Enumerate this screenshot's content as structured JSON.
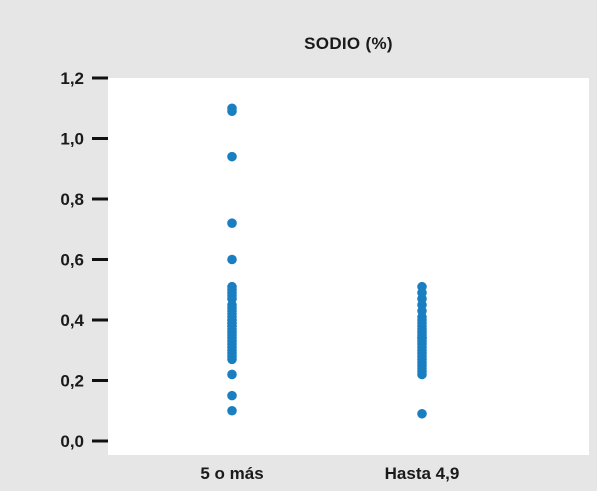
{
  "chart_data": {
    "type": "scatter",
    "title": "SODIO (%)",
    "xlabel": "",
    "ylabel": "",
    "ylim": [
      0,
      1.2
    ],
    "yticks": [
      {
        "value": 0.0,
        "label": "0,0"
      },
      {
        "value": 0.2,
        "label": "0,2"
      },
      {
        "value": 0.4,
        "label": "0,4"
      },
      {
        "value": 0.6,
        "label": "0,6"
      },
      {
        "value": 0.8,
        "label": "0,8"
      },
      {
        "value": 1.0,
        "label": "1,0"
      },
      {
        "value": 1.2,
        "label": "1,2"
      }
    ],
    "categories": [
      "5 o más",
      "Hasta 4,9"
    ],
    "grid": false,
    "colors": {
      "point": "#1a7fc1",
      "axis": "#111111",
      "plot_bg": "#ffffff",
      "frame_bg": "#e6e6e6"
    },
    "series": [
      {
        "category": "5 o más",
        "values": [
          1.1,
          1.09,
          0.94,
          0.72,
          0.6,
          0.51,
          0.5,
          0.49,
          0.48,
          0.47,
          0.45,
          0.44,
          0.43,
          0.42,
          0.41,
          0.4,
          0.4,
          0.39,
          0.39,
          0.38,
          0.38,
          0.37,
          0.36,
          0.35,
          0.34,
          0.33,
          0.32,
          0.31,
          0.3,
          0.29,
          0.28,
          0.27,
          0.22,
          0.15,
          0.1
        ]
      },
      {
        "category": "Hasta 4,9",
        "values": [
          0.51,
          0.49,
          0.47,
          0.45,
          0.43,
          0.41,
          0.4,
          0.39,
          0.38,
          0.37,
          0.36,
          0.35,
          0.34,
          0.34,
          0.33,
          0.32,
          0.31,
          0.3,
          0.29,
          0.28,
          0.27,
          0.26,
          0.25,
          0.24,
          0.23,
          0.22,
          0.09
        ]
      }
    ]
  }
}
